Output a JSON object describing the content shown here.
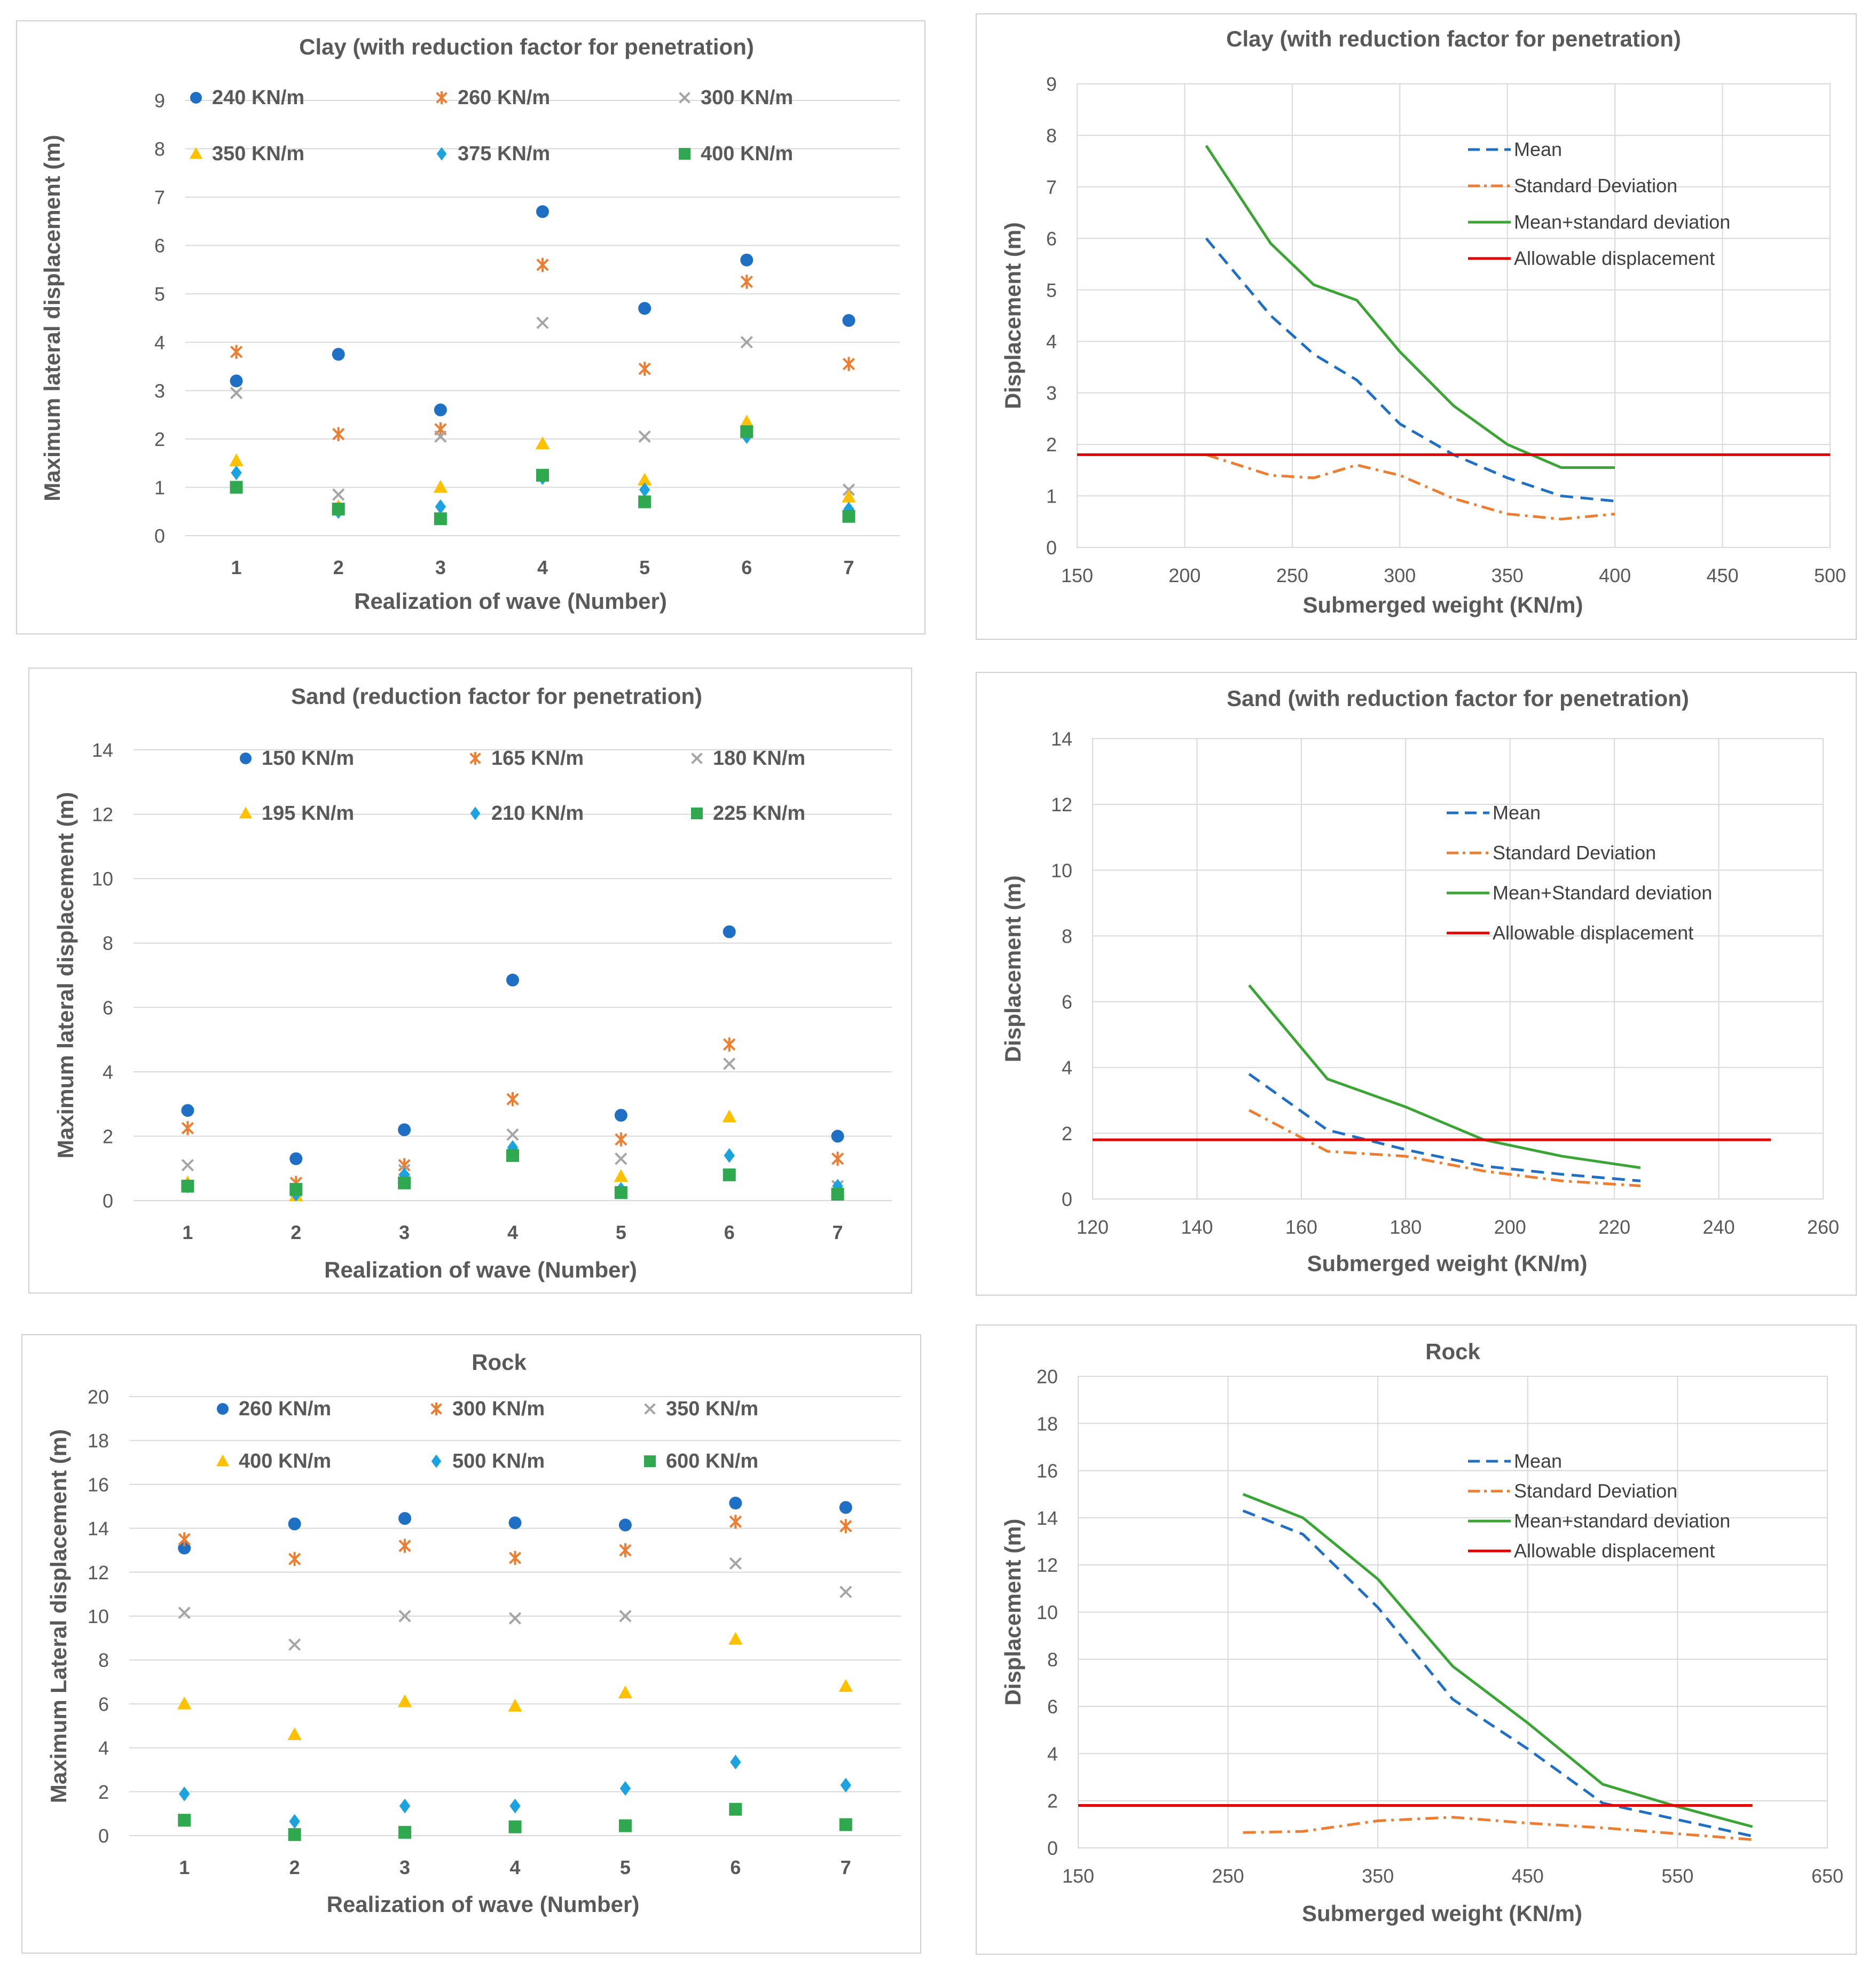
{
  "chart_data": [
    {
      "id": "clay-scatter",
      "type": "scatter",
      "title": "Clay (with reduction factor for penetration)",
      "xlabel": "Realization of wave (Number)",
      "ylabel": "Maximum lateral displacement (m)",
      "x": [
        1,
        2,
        3,
        4,
        5,
        6,
        7
      ],
      "xlim": [
        0.5,
        7.5
      ],
      "ylim": [
        0,
        9
      ],
      "yticks": [
        0,
        1,
        2,
        3,
        4,
        5,
        6,
        7,
        8,
        9
      ],
      "grid": true,
      "legend": "top",
      "series": [
        {
          "name": "240 KN/m",
          "marker": "circle",
          "color": "#1f6fc5",
          "values": [
            3.2,
            3.75,
            2.6,
            6.7,
            4.7,
            5.7,
            4.45
          ]
        },
        {
          "name": "260 KN/m",
          "marker": "star",
          "color": "#ed7d31",
          "values": [
            3.8,
            2.1,
            2.2,
            5.6,
            3.45,
            5.25,
            3.55
          ]
        },
        {
          "name": "300 KN/m",
          "marker": "x",
          "color": "#a5a5a5",
          "values": [
            2.95,
            0.85,
            2.05,
            4.4,
            2.05,
            4.0,
            0.95
          ]
        },
        {
          "name": "350 KN/m",
          "marker": "triangle",
          "color": "#ffc000",
          "values": [
            1.55,
            0.6,
            1.0,
            1.9,
            1.15,
            2.35,
            0.8
          ]
        },
        {
          "name": "375 KN/m",
          "marker": "diamond",
          "color": "#1ca3df",
          "values": [
            1.3,
            0.5,
            0.6,
            1.2,
            0.95,
            2.05,
            0.55
          ]
        },
        {
          "name": "400 KN/m",
          "marker": "square",
          "color": "#2fa84f",
          "values": [
            1.0,
            0.55,
            0.35,
            1.25,
            0.7,
            2.15,
            0.4
          ]
        }
      ]
    },
    {
      "id": "clay-line",
      "type": "line",
      "title": "Clay (with reduction factor for penetration)",
      "xlabel": "Submerged weight (KN/m)",
      "ylabel": "Displacement (m)",
      "xlim": [
        150,
        500
      ],
      "xticks": [
        150,
        200,
        250,
        300,
        350,
        400,
        450,
        500
      ],
      "ylim": [
        0,
        9
      ],
      "yticks": [
        0,
        1,
        2,
        3,
        4,
        5,
        6,
        7,
        8,
        9
      ],
      "grid": true,
      "legend": "top-right",
      "series": [
        {
          "name": "Mean",
          "style": "dash",
          "color": "#1f6fc5",
          "x": [
            210,
            240,
            260,
            280,
            300,
            325,
            350,
            375,
            400
          ],
          "values": [
            6.0,
            4.5,
            3.75,
            3.25,
            2.4,
            1.8,
            1.35,
            1.0,
            0.9
          ]
        },
        {
          "name": "Standard Deviation",
          "style": "dashdot",
          "color": "#ed7d31",
          "x": [
            210,
            240,
            260,
            280,
            300,
            325,
            350,
            375,
            400
          ],
          "values": [
            1.8,
            1.4,
            1.35,
            1.6,
            1.4,
            0.95,
            0.65,
            0.55,
            0.65
          ]
        },
        {
          "name": "Mean+standard deviation",
          "style": "solid",
          "color": "#3aa535",
          "x": [
            210,
            240,
            260,
            280,
            300,
            325,
            350,
            375,
            400
          ],
          "values": [
            7.8,
            5.9,
            5.1,
            4.8,
            3.8,
            2.75,
            2.0,
            1.55,
            1.55
          ]
        },
        {
          "name": "Allowable displacement",
          "style": "solid",
          "color": "#e00000",
          "x": [
            150,
            500
          ],
          "values": [
            1.8,
            1.8
          ]
        }
      ]
    },
    {
      "id": "sand-scatter",
      "type": "scatter",
      "title": "Sand (reduction factor for penetration)",
      "xlabel": "Realization of wave (Number)",
      "ylabel": "Maximum lateral displacement (m)",
      "x": [
        1,
        2,
        3,
        4,
        5,
        6,
        7
      ],
      "xlim": [
        0.5,
        7.5
      ],
      "ylim": [
        0,
        14
      ],
      "yticks": [
        0,
        2,
        4,
        6,
        8,
        10,
        12,
        14
      ],
      "grid": true,
      "legend": "top",
      "series": [
        {
          "name": "150 KN/m",
          "marker": "circle",
          "color": "#1f6fc5",
          "values": [
            2.8,
            1.3,
            2.2,
            6.85,
            2.65,
            8.35,
            2.0
          ]
        },
        {
          "name": "165 KN/m",
          "marker": "star",
          "color": "#ed7d31",
          "values": [
            2.25,
            0.55,
            1.1,
            3.15,
            1.9,
            4.85,
            1.3
          ]
        },
        {
          "name": "180 KN/m",
          "marker": "x",
          "color": "#a5a5a5",
          "values": [
            1.1,
            0.3,
            0.95,
            2.05,
            1.3,
            4.25,
            0.45
          ]
        },
        {
          "name": "195 KN/m",
          "marker": "triangle",
          "color": "#ffc000",
          "values": [
            0.55,
            0.15,
            0.7,
            1.65,
            0.75,
            2.6,
            0.3
          ]
        },
        {
          "name": "210 KN/m",
          "marker": "diamond",
          "color": "#1ca3df",
          "values": [
            0.45,
            0.2,
            0.8,
            1.65,
            0.35,
            1.4,
            0.45
          ]
        },
        {
          "name": "225 KN/m",
          "marker": "square",
          "color": "#2fa84f",
          "values": [
            0.45,
            0.35,
            0.55,
            1.4,
            0.25,
            0.8,
            0.2
          ]
        }
      ]
    },
    {
      "id": "sand-line",
      "type": "line",
      "title": "Sand (with reduction factor for penetration)",
      "xlabel": "Submerged weight (KN/m)",
      "ylabel": "Displacement (m)",
      "xlim": [
        120,
        260
      ],
      "xticks": [
        120,
        140,
        160,
        180,
        200,
        220,
        240,
        260
      ],
      "ylim": [
        0,
        14
      ],
      "yticks": [
        0,
        2,
        4,
        6,
        8,
        10,
        12,
        14
      ],
      "grid": true,
      "legend": "top-right",
      "series": [
        {
          "name": "Mean",
          "style": "dash",
          "color": "#1f6fc5",
          "x": [
            150,
            165,
            180,
            195,
            210,
            225
          ],
          "values": [
            3.8,
            2.1,
            1.5,
            1.0,
            0.75,
            0.55
          ]
        },
        {
          "name": "Standard Deviation",
          "style": "dashdot",
          "color": "#ed7d31",
          "x": [
            150,
            165,
            180,
            195,
            210,
            225
          ],
          "values": [
            2.7,
            1.45,
            1.3,
            0.85,
            0.55,
            0.4
          ]
        },
        {
          "name": "Mean+Standard deviation",
          "style": "solid",
          "color": "#3aa535",
          "x": [
            150,
            165,
            180,
            195,
            210,
            225
          ],
          "values": [
            6.5,
            3.65,
            2.8,
            1.8,
            1.3,
            0.95
          ]
        },
        {
          "name": "Allowable displacement",
          "style": "solid",
          "color": "#e00000",
          "x": [
            120,
            250
          ],
          "values": [
            1.8,
            1.8
          ]
        }
      ]
    },
    {
      "id": "rock-scatter",
      "type": "scatter",
      "title": "Rock",
      "xlabel": "Realization of wave (Number)",
      "ylabel": "Maximum Lateral displacement (m)",
      "x": [
        1,
        2,
        3,
        4,
        5,
        6,
        7
      ],
      "xlim": [
        0.5,
        7.5
      ],
      "ylim": [
        0,
        20
      ],
      "yticks": [
        0,
        2,
        4,
        6,
        8,
        10,
        12,
        14,
        16,
        18,
        20
      ],
      "grid": true,
      "legend": "top",
      "series": [
        {
          "name": "260 KN/m",
          "marker": "circle",
          "color": "#1f6fc5",
          "values": [
            13.1,
            14.2,
            14.45,
            14.25,
            14.15,
            15.15,
            14.95
          ]
        },
        {
          "name": "300 KN/m",
          "marker": "star",
          "color": "#ed7d31",
          "values": [
            13.5,
            12.6,
            13.2,
            12.65,
            13.0,
            14.3,
            14.1
          ]
        },
        {
          "name": "350 KN/m",
          "marker": "x",
          "color": "#a5a5a5",
          "values": [
            10.15,
            8.7,
            10.0,
            9.9,
            10.0,
            12.4,
            11.1
          ]
        },
        {
          "name": "400 KN/m",
          "marker": "triangle",
          "color": "#ffc000",
          "values": [
            6.0,
            4.6,
            6.1,
            5.9,
            6.5,
            8.95,
            6.8
          ]
        },
        {
          "name": "500 KN/m",
          "marker": "diamond",
          "color": "#1ca3df",
          "values": [
            1.9,
            0.65,
            1.35,
            1.35,
            2.15,
            3.35,
            2.3
          ]
        },
        {
          "name": "600 KN/m",
          "marker": "square",
          "color": "#2fa84f",
          "values": [
            0.7,
            0.05,
            0.15,
            0.4,
            0.45,
            1.2,
            0.5
          ]
        }
      ]
    },
    {
      "id": "rock-line",
      "type": "line",
      "title": "Rock",
      "xlabel": "Submerged weight (KN/m)",
      "ylabel": "Displacement (m)",
      "xlim": [
        150,
        650
      ],
      "xticks": [
        150,
        250,
        350,
        450,
        550,
        650
      ],
      "ylim": [
        0,
        20
      ],
      "yticks": [
        0,
        2,
        4,
        6,
        8,
        10,
        12,
        14,
        16,
        18,
        20
      ],
      "grid": true,
      "legend": "top-right",
      "series": [
        {
          "name": "Mean",
          "style": "dash",
          "color": "#1f6fc5",
          "x": [
            260,
            300,
            350,
            400,
            450,
            500,
            550,
            600
          ],
          "values": [
            14.3,
            13.3,
            10.2,
            6.3,
            4.2,
            1.9,
            1.2,
            0.5
          ]
        },
        {
          "name": "Standard Deviation",
          "style": "dashdot",
          "color": "#ed7d31",
          "x": [
            260,
            300,
            350,
            400,
            450,
            500,
            550,
            600
          ],
          "values": [
            0.65,
            0.7,
            1.15,
            1.3,
            1.05,
            0.85,
            0.6,
            0.35
          ]
        },
        {
          "name": "Mean+standard deviation",
          "style": "solid",
          "color": "#3aa535",
          "x": [
            260,
            300,
            350,
            400,
            450,
            500,
            550,
            600
          ],
          "values": [
            15.0,
            14.0,
            11.4,
            7.7,
            5.3,
            2.7,
            1.75,
            0.9
          ]
        },
        {
          "name": "Allowable displacement",
          "style": "solid",
          "color": "#e00000",
          "x": [
            150,
            600
          ],
          "values": [
            1.8,
            1.8
          ]
        }
      ]
    }
  ]
}
